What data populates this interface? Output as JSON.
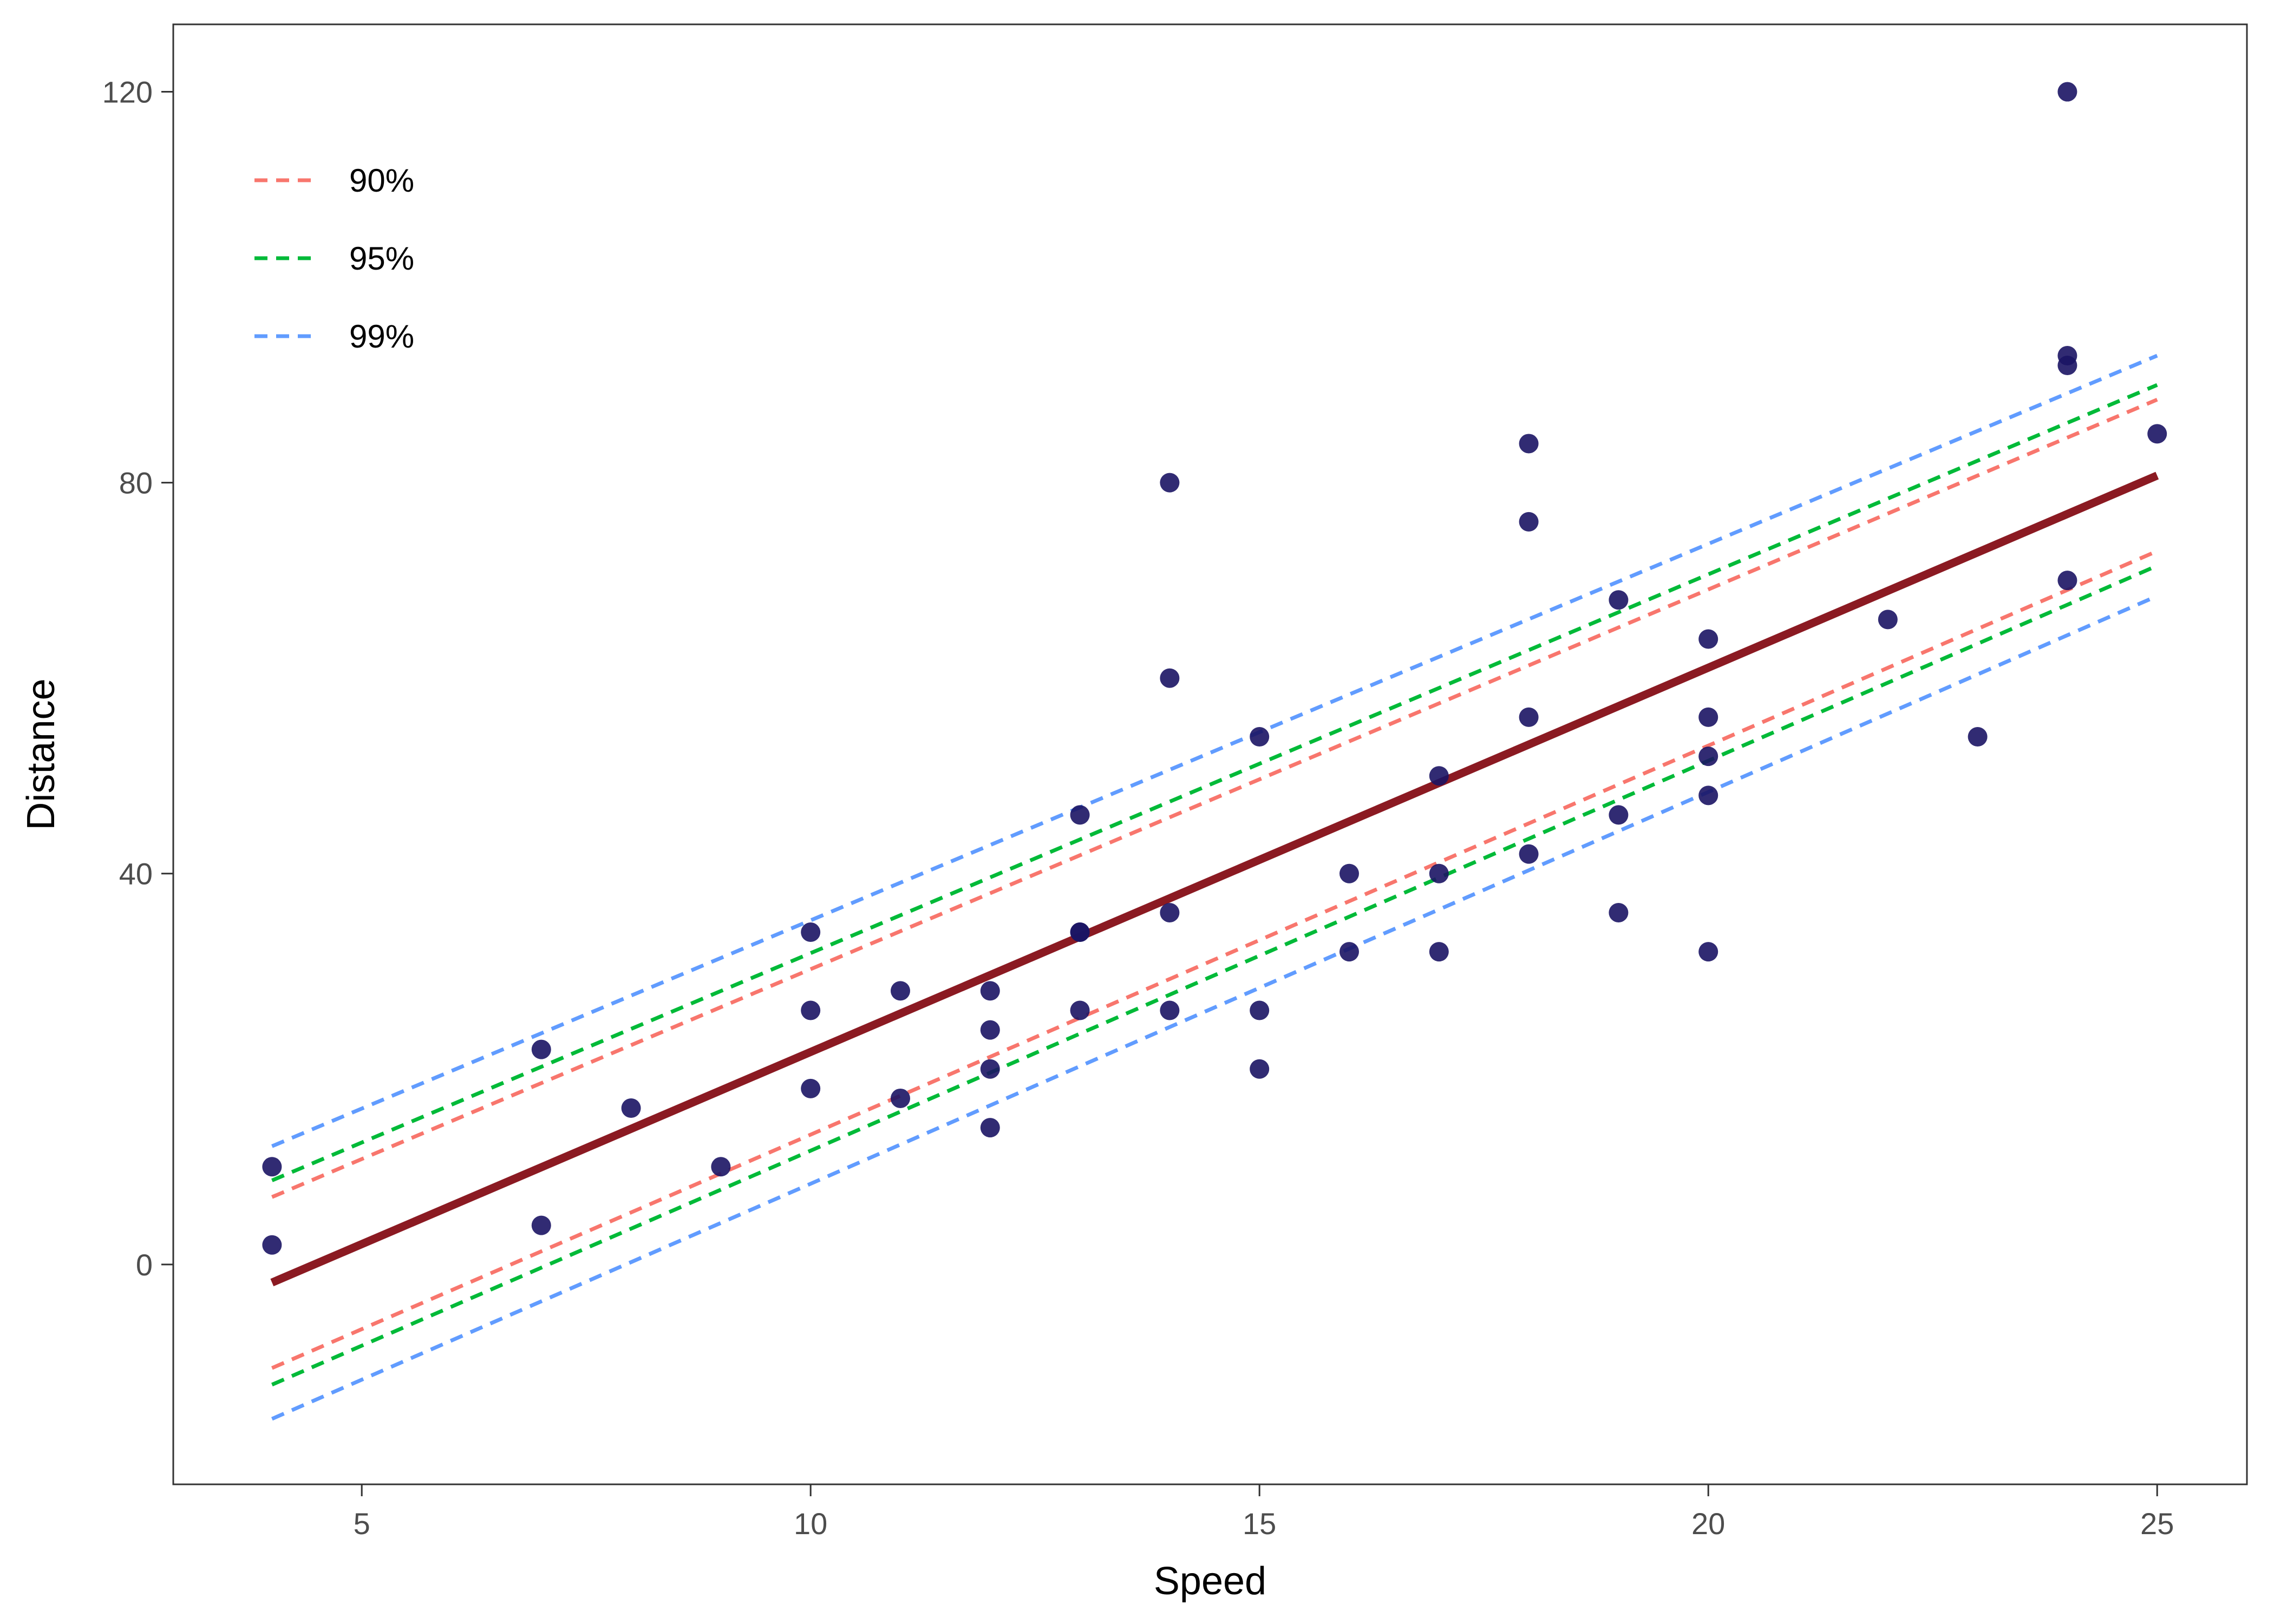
{
  "chart_data": {
    "type": "scatter",
    "xlabel": "Speed",
    "ylabel": "Distance",
    "xlim": [
      2.9,
      26.0
    ],
    "ylim": [
      -22.5,
      126.9
    ],
    "x_ticks": [
      5,
      10,
      15,
      20,
      25
    ],
    "y_ticks": [
      0,
      40,
      80,
      120
    ],
    "grid": false,
    "legend_position": "top-left",
    "colors": {
      "points": "#1b1464",
      "fit": "#8b1a22",
      "90%": "#f8766d",
      "95%": "#00ba38",
      "99%": "#619cff",
      "frame": "#333333"
    },
    "points": [
      [
        4,
        2
      ],
      [
        4,
        10
      ],
      [
        7,
        4
      ],
      [
        7,
        22
      ],
      [
        8,
        16
      ],
      [
        9,
        10
      ],
      [
        10,
        18
      ],
      [
        10,
        26
      ],
      [
        10,
        34
      ],
      [
        11,
        17
      ],
      [
        11,
        28
      ],
      [
        12,
        14
      ],
      [
        12,
        20
      ],
      [
        12,
        24
      ],
      [
        12,
        28
      ],
      [
        13,
        26
      ],
      [
        13,
        34
      ],
      [
        13,
        34
      ],
      [
        13,
        46
      ],
      [
        14,
        26
      ],
      [
        14,
        36
      ],
      [
        14,
        60
      ],
      [
        14,
        80
      ],
      [
        15,
        20
      ],
      [
        15,
        26
      ],
      [
        15,
        54
      ],
      [
        16,
        32
      ],
      [
        16,
        40
      ],
      [
        17,
        32
      ],
      [
        17,
        40
      ],
      [
        17,
        50
      ],
      [
        18,
        42
      ],
      [
        18,
        56
      ],
      [
        18,
        76
      ],
      [
        18,
        84
      ],
      [
        19,
        36
      ],
      [
        19,
        46
      ],
      [
        19,
        68
      ],
      [
        20,
        32
      ],
      [
        20,
        48
      ],
      [
        20,
        52
      ],
      [
        20,
        56
      ],
      [
        20,
        64
      ],
      [
        22,
        66
      ],
      [
        23,
        54
      ],
      [
        24,
        70
      ],
      [
        24,
        92
      ],
      [
        24,
        93
      ],
      [
        24,
        120
      ],
      [
        25,
        85
      ]
    ],
    "fit": {
      "name": "fit",
      "x": [
        4,
        25
      ],
      "y": [
        -1.85,
        80.73
      ]
    },
    "series": [
      {
        "name": "90%",
        "x": [
          4,
          25
        ],
        "upper": [
          6.9,
          88.5
        ],
        "lower": [
          -10.6,
          73.0
        ]
      },
      {
        "name": "95%",
        "x": [
          4,
          25
        ],
        "upper": [
          8.6,
          90.0
        ],
        "lower": [
          -12.3,
          71.5
        ]
      },
      {
        "name": "99%",
        "x": [
          4,
          25
        ],
        "upper": [
          12.1,
          93.0
        ],
        "lower": [
          -15.8,
          68.4
        ]
      }
    ]
  }
}
